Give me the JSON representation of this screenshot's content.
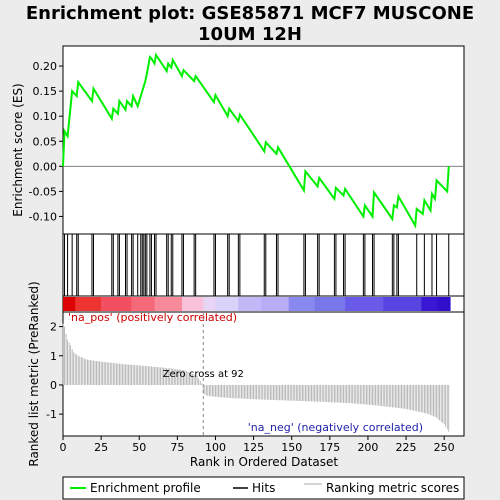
{
  "title_line1": "Enrichment plot: GSE85871 MCF7 MUSCONE",
  "title_line2": "10UM 12H",
  "chart_data": {
    "type": "line",
    "es_panel": {
      "ylabel": "Enrichment score (ES)",
      "ylim": [
        -0.135,
        0.24
      ],
      "yticks": [
        -0.1,
        -0.05,
        0.0,
        0.05,
        0.1,
        0.15,
        0.2
      ],
      "ytick_labels": [
        "-0.10",
        "-0.05",
        "0.00",
        "0.05",
        "0.10",
        "0.15",
        "0.20"
      ],
      "series": [
        {
          "name": "Enrichment profile",
          "color": "#00ee00",
          "x": [
            0,
            1,
            3,
            6,
            9,
            10,
            19,
            20,
            32,
            33,
            36,
            37,
            41,
            42,
            45,
            46,
            49,
            51,
            52,
            53,
            54,
            55,
            57,
            58,
            60,
            61,
            68,
            69,
            71,
            72,
            78,
            79,
            86,
            87,
            99,
            100,
            108,
            109,
            115,
            116,
            132,
            133,
            140,
            141,
            158,
            159,
            167,
            168,
            178,
            179,
            184,
            185,
            197,
            198,
            203,
            204,
            216,
            217,
            219,
            220,
            231,
            232,
            236,
            237,
            241,
            242,
            244,
            245,
            252,
            253
          ],
          "y": [
            0.0,
            0.07,
            0.06,
            0.15,
            0.14,
            0.168,
            0.13,
            0.155,
            0.095,
            0.115,
            0.105,
            0.13,
            0.113,
            0.13,
            0.12,
            0.14,
            0.12,
            0.14,
            0.15,
            0.16,
            0.17,
            0.185,
            0.218,
            0.215,
            0.205,
            0.222,
            0.19,
            0.205,
            0.197,
            0.212,
            0.18,
            0.192,
            0.17,
            0.18,
            0.128,
            0.142,
            0.1,
            0.115,
            0.09,
            0.103,
            0.03,
            0.048,
            0.025,
            0.038,
            -0.048,
            -0.01,
            -0.04,
            -0.023,
            -0.065,
            -0.043,
            -0.058,
            -0.045,
            -0.1,
            -0.078,
            -0.1,
            -0.052,
            -0.105,
            -0.078,
            -0.082,
            -0.06,
            -0.118,
            -0.085,
            -0.095,
            -0.068,
            -0.088,
            -0.055,
            -0.065,
            -0.028,
            -0.05,
            0.0
          ]
        }
      ]
    },
    "hits_panel": {
      "name": "Hits",
      "color": "#000000",
      "hit_positions": [
        1,
        3,
        6,
        9,
        10,
        19,
        20,
        32,
        33,
        36,
        37,
        41,
        42,
        45,
        46,
        49,
        51,
        52,
        53,
        54,
        55,
        57,
        58,
        60,
        61,
        68,
        69,
        71,
        72,
        78,
        79,
        86,
        87,
        99,
        100,
        108,
        109,
        115,
        116,
        132,
        133,
        140,
        141,
        158,
        159,
        167,
        168,
        178,
        179,
        184,
        185,
        197,
        198,
        203,
        204,
        216,
        217,
        219,
        220,
        232,
        237,
        242,
        245,
        253
      ]
    },
    "ranked_panel": {
      "name": "Ranking metric scores",
      "color": "#aaaaaa",
      "ylabel": "Ranked list metric (PreRanked)",
      "xlabel": "Rank in Ordered Dataset",
      "ylim": [
        -1.75,
        2.5
      ],
      "yticks": [
        -1,
        0,
        1,
        2
      ],
      "xlim": [
        0,
        263
      ],
      "xticks": [
        0,
        25,
        50,
        75,
        100,
        125,
        150,
        175,
        200,
        225,
        250
      ],
      "n_genes": 254,
      "zero_cross": 92,
      "metric_profile": [
        [
          0,
          2.1
        ],
        [
          1,
          2.0
        ],
        [
          2,
          1.75
        ],
        [
          3,
          1.55
        ],
        [
          5,
          1.35
        ],
        [
          7,
          1.12
        ],
        [
          10,
          1.0
        ],
        [
          15,
          0.88
        ],
        [
          20,
          0.83
        ],
        [
          30,
          0.77
        ],
        [
          40,
          0.71
        ],
        [
          50,
          0.67
        ],
        [
          60,
          0.62
        ],
        [
          70,
          0.57
        ],
        [
          80,
          0.5
        ],
        [
          88,
          0.3
        ],
        [
          91,
          0.05
        ],
        [
          92,
          -0.3
        ],
        [
          95,
          -0.38
        ],
        [
          110,
          -0.45
        ],
        [
          130,
          -0.5
        ],
        [
          150,
          -0.54
        ],
        [
          170,
          -0.58
        ],
        [
          190,
          -0.63
        ],
        [
          205,
          -0.7
        ],
        [
          215,
          -0.76
        ],
        [
          225,
          -0.82
        ],
        [
          232,
          -0.9
        ],
        [
          240,
          -1.0
        ],
        [
          245,
          -1.12
        ],
        [
          250,
          -1.35
        ],
        [
          253,
          -1.6
        ]
      ]
    },
    "annotations": {
      "pos": "'na_pos' (positively correlated)",
      "neg": "'na_neg' (negatively correlated)",
      "zero": "Zero cross at 92"
    },
    "heatbar": {
      "stops": [
        [
          0,
          "#dd0000"
        ],
        [
          8,
          "#ee3333"
        ],
        [
          25,
          "#f25060"
        ],
        [
          45,
          "#f46a7a"
        ],
        [
          60,
          "#f68a98"
        ],
        [
          78,
          "#f9c2dc"
        ],
        [
          92,
          "#e8d4f4"
        ],
        [
          100,
          "#d9d2fa"
        ],
        [
          115,
          "#c2b8f8"
        ],
        [
          130,
          "#b8acf6"
        ],
        [
          148,
          "#8888ee"
        ],
        [
          165,
          "#7777ea"
        ],
        [
          185,
          "#6a5ae8"
        ],
        [
          210,
          "#5844e0"
        ],
        [
          235,
          "#3818d4"
        ],
        [
          245,
          "#3010cc"
        ],
        [
          254,
          "#2000bb"
        ]
      ]
    },
    "legend": {
      "placement": "bottom",
      "items": [
        {
          "label": "Enrichment profile",
          "color": "#00ee00",
          "kind": "line"
        },
        {
          "label": "Hits",
          "color": "#000000",
          "kind": "line"
        },
        {
          "label": "Ranking metric scores",
          "color": "#aaaaaa",
          "kind": "thin"
        }
      ]
    }
  }
}
